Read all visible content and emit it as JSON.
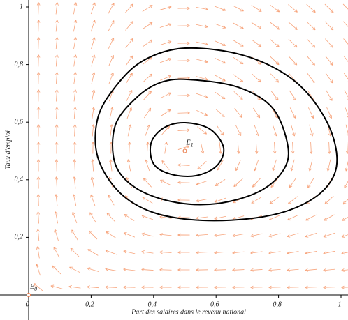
{
  "chart_data": {
    "type": "phase-portrait",
    "x_label": "Part des salaires dans le revenu national",
    "y_label": "Taux d'emploi",
    "xlim": [
      0,
      1.0
    ],
    "ylim": [
      0,
      1.0
    ],
    "xticks": [
      0,
      {
        "value": 0.2,
        "label": "0,2"
      },
      {
        "value": 0.4,
        "label": "0,4"
      },
      {
        "value": 0.6,
        "label": "0,6"
      },
      {
        "value": 0.8,
        "label": "0,8"
      },
      1
    ],
    "yticks": [
      {
        "value": 0.2,
        "label": "0,2"
      },
      {
        "value": 0.4,
        "label": "0,4"
      },
      {
        "value": 0.6,
        "label": "0,6"
      },
      {
        "value": 0.8,
        "label": "0,8"
      },
      1
    ],
    "arrow_color": "#f7a47c",
    "series": [
      {
        "color": "#000000",
        "x": [
          0.501,
          0.691,
          0.848,
          0.949,
          0.987,
          0.96,
          0.87,
          0.736,
          0.557,
          0.4,
          0.289,
          0.221,
          0.221,
          0.277,
          0.367
        ],
        "y": [
          0.857,
          0.831,
          0.746,
          0.613,
          0.479,
          0.383,
          0.31,
          0.269,
          0.259,
          0.286,
          0.358,
          0.479,
          0.613,
          0.722,
          0.814
        ]
      },
      {
        "color": "#000000",
        "x": [
          0.512,
          0.669,
          0.781,
          0.83,
          0.814,
          0.736,
          0.602,
          0.468,
          0.345,
          0.277,
          0.277,
          0.345,
          0.423
        ],
        "y": [
          0.748,
          0.722,
          0.649,
          0.516,
          0.431,
          0.358,
          0.317,
          0.322,
          0.37,
          0.455,
          0.588,
          0.685,
          0.738
        ]
      },
      {
        "color": "#000000",
        "x": [
          0.501,
          0.58,
          0.624,
          0.602,
          0.535,
          0.456,
          0.4,
          0.392,
          0.434
        ],
        "y": [
          0.598,
          0.576,
          0.511,
          0.448,
          0.414,
          0.419,
          0.455,
          0.528,
          0.581
        ]
      }
    ],
    "points": [
      {
        "label": "E",
        "subscript": "0",
        "x": 0,
        "y": 0,
        "color": "#e8703a"
      },
      {
        "label": "E",
        "subscript": "1",
        "x": 0.5,
        "y": 0.5,
        "color": "#e8703a"
      }
    ]
  }
}
